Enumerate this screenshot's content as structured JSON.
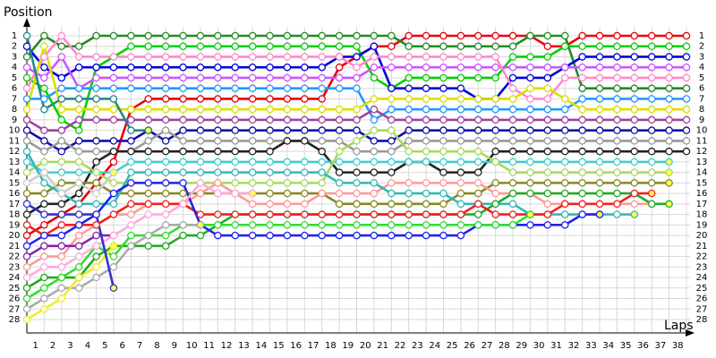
{
  "chart_data": {
    "type": "line",
    "y_label": "Position",
    "x_label": "Laps",
    "x": [
      0,
      1,
      2,
      3,
      4,
      5,
      6,
      7,
      8,
      9,
      10,
      11,
      12,
      13,
      14,
      15,
      16,
      17,
      18,
      19,
      20,
      21,
      22,
      23,
      24,
      25,
      26,
      27,
      28,
      29,
      30,
      31,
      32,
      33,
      34,
      35,
      36,
      37,
      38
    ],
    "xlim": [
      0,
      38
    ],
    "xticks": [
      1,
      2,
      3,
      4,
      5,
      6,
      7,
      8,
      9,
      10,
      11,
      12,
      13,
      14,
      15,
      16,
      17,
      18,
      19,
      20,
      21,
      22,
      23,
      24,
      25,
      26,
      27,
      28,
      29,
      30,
      31,
      32,
      33,
      34,
      35,
      36,
      37,
      38
    ],
    "ylim": [
      1,
      28
    ],
    "y_inverted": true,
    "yticks": [
      1,
      2,
      3,
      4,
      5,
      6,
      7,
      8,
      9,
      10,
      11,
      12,
      13,
      14,
      15,
      16,
      17,
      18,
      19,
      20,
      21,
      22,
      23,
      24,
      25,
      26,
      27,
      28
    ],
    "grid": true,
    "series": [
      {
        "color": "#e8000b",
        "values": [
          20,
          19,
          18,
          17,
          15,
          13,
          8,
          7,
          7,
          7,
          7,
          7,
          7,
          7,
          7,
          7,
          7,
          7,
          4,
          3,
          2,
          2,
          1,
          1,
          1,
          1,
          1,
          1,
          1,
          1,
          2,
          2,
          1,
          1,
          1,
          1,
          1,
          1,
          1
        ]
      },
      {
        "color": "#228b22",
        "values": [
          3,
          1,
          2,
          2,
          1,
          1,
          1,
          1,
          1,
          1,
          1,
          1,
          1,
          1,
          1,
          1,
          1,
          1,
          1,
          1,
          1,
          1,
          2,
          2,
          2,
          2,
          2,
          2,
          2,
          1,
          1,
          1,
          6,
          6,
          6,
          6,
          6,
          6,
          6
        ]
      },
      {
        "color": "#00d000",
        "values": [
          5,
          6,
          9,
          10,
          4,
          3,
          2,
          2,
          2,
          2,
          2,
          2,
          2,
          2,
          2,
          2,
          2,
          2,
          2,
          2,
          5,
          6,
          5,
          5,
          5,
          5,
          5,
          5,
          3,
          3,
          3,
          2,
          2,
          2,
          2,
          2,
          2,
          2,
          2
        ]
      },
      {
        "color": "#0000dd",
        "values": [
          2,
          4,
          5,
          4,
          4,
          4,
          4,
          4,
          4,
          4,
          4,
          4,
          4,
          4,
          4,
          4,
          4,
          4,
          3,
          3,
          2,
          6,
          6,
          6,
          6,
          6,
          7,
          7,
          5,
          5,
          5,
          4,
          3,
          3,
          3,
          3,
          3,
          3,
          3
        ]
      },
      {
        "color": "#cc55ff",
        "values": [
          4,
          5,
          3,
          6,
          5,
          5,
          5,
          5,
          5,
          5,
          5,
          5,
          5,
          5,
          5,
          5,
          5,
          5,
          5,
          5,
          4,
          4,
          4,
          4,
          4,
          4,
          4,
          4,
          4,
          4,
          4,
          4,
          4,
          4,
          4,
          4,
          4,
          4,
          4
        ]
      },
      {
        "color": "#ff88cc",
        "values": [
          6,
          3,
          1,
          3,
          3,
          3,
          3,
          3,
          3,
          3,
          3,
          3,
          3,
          3,
          3,
          3,
          3,
          3,
          3,
          4,
          3,
          3,
          3,
          3,
          3,
          3,
          3,
          3,
          6,
          7,
          7,
          5,
          5,
          5,
          5,
          5,
          5,
          5,
          5
        ]
      },
      {
        "color": "#2299ff",
        "values": [
          7,
          7,
          6,
          6,
          6,
          6,
          6,
          6,
          6,
          6,
          6,
          6,
          6,
          6,
          6,
          6,
          6,
          6,
          6,
          6,
          9,
          8,
          8,
          8,
          8,
          8,
          8,
          8,
          8,
          8,
          8,
          8,
          7,
          7,
          7,
          7,
          7,
          7,
          7
        ]
      },
      {
        "color": "#dddd00",
        "values": [
          8,
          2,
          8,
          8,
          8,
          8,
          8,
          8,
          8,
          8,
          8,
          8,
          8,
          8,
          8,
          8,
          8,
          8,
          8,
          8,
          7,
          7,
          7,
          7,
          7,
          7,
          7,
          7,
          7,
          6,
          6,
          7,
          8,
          8,
          8,
          8,
          8,
          8,
          8
        ]
      },
      {
        "color": "#a040a0",
        "values": [
          9,
          10,
          10,
          9,
          9,
          9,
          9,
          9,
          9,
          9,
          9,
          9,
          9,
          9,
          9,
          9,
          9,
          9,
          9,
          9,
          8,
          9,
          9,
          9,
          9,
          9,
          9,
          9,
          9,
          9,
          9,
          9,
          9,
          9,
          9,
          9,
          9,
          9,
          9
        ]
      },
      {
        "color": "#1111aa",
        "values": [
          10,
          11,
          12,
          11,
          11,
          11,
          11,
          10,
          11,
          10,
          10,
          10,
          10,
          10,
          10,
          10,
          10,
          10,
          10,
          10,
          11,
          11,
          10,
          10,
          10,
          10,
          10,
          10,
          10,
          10,
          10,
          10,
          10,
          10,
          10,
          10,
          10,
          10,
          10
        ]
      },
      {
        "color": "#999999",
        "values": [
          11,
          12,
          11,
          12,
          12,
          12,
          12,
          11,
          10,
          11,
          11,
          11,
          11,
          11,
          11,
          11,
          11,
          11,
          11,
          12,
          12,
          12,
          11,
          11,
          11,
          11,
          11,
          11,
          11,
          11,
          11,
          11,
          11,
          11,
          11,
          11,
          11,
          11,
          11
        ]
      },
      {
        "color": "#222222",
        "values": [
          18,
          17,
          17,
          16,
          13,
          12,
          12,
          12,
          12,
          12,
          12,
          12,
          12,
          12,
          12,
          11,
          11,
          12,
          14,
          14,
          14,
          14,
          13,
          13,
          14,
          14,
          14,
          12,
          12,
          12,
          12,
          12,
          12,
          12,
          12,
          12,
          12,
          12,
          12
        ]
      },
      {
        "color": "#44cccc",
        "values": [
          13,
          14,
          14,
          14,
          14,
          14,
          13,
          13,
          13,
          13,
          13,
          13,
          13,
          13,
          13,
          13,
          13,
          13,
          13,
          13,
          13,
          13,
          13,
          13,
          13,
          13,
          13,
          13,
          13,
          13,
          13,
          13,
          13,
          13,
          13,
          13,
          13,
          13,
          null
        ]
      },
      {
        "color": "#888822",
        "values": [
          16,
          16,
          15,
          15,
          15,
          16,
          16,
          16,
          16,
          16,
          16,
          16,
          16,
          16,
          16,
          16,
          16,
          16,
          17,
          17,
          17,
          17,
          17,
          17,
          17,
          16,
          16,
          15,
          15,
          15,
          15,
          15,
          15,
          15,
          15,
          15,
          15,
          15,
          null
        ]
      },
      {
        "color": "#a8d860",
        "values": [
          14,
          13,
          13,
          13,
          14,
          15,
          15,
          15,
          15,
          15,
          15,
          15,
          15,
          15,
          15,
          15,
          15,
          15,
          12,
          11,
          10,
          10,
          12,
          12,
          12,
          12,
          12,
          13,
          14,
          14,
          14,
          14,
          14,
          14,
          14,
          14,
          14,
          14,
          null
        ]
      },
      {
        "color": "#ff9999",
        "values": [
          23,
          22,
          22,
          20,
          19,
          18,
          18,
          17,
          17,
          17,
          16,
          15,
          16,
          17,
          17,
          17,
          17,
          16,
          16,
          16,
          16,
          15,
          15,
          15,
          15,
          15,
          15,
          16,
          16,
          16,
          17,
          17,
          17,
          17,
          17,
          17,
          17,
          null,
          null
        ]
      },
      {
        "color": "#33b8b8",
        "values": [
          12,
          15,
          16,
          17,
          17,
          17,
          14,
          14,
          14,
          14,
          14,
          14,
          14,
          14,
          14,
          14,
          14,
          14,
          15,
          15,
          15,
          16,
          16,
          16,
          16,
          17,
          17,
          17,
          17,
          18,
          18,
          18,
          18,
          18,
          18,
          18,
          null,
          null,
          null
        ]
      },
      {
        "color": "#22aa22",
        "values": [
          25,
          24,
          24,
          24,
          22,
          21,
          21,
          21,
          21,
          20,
          20,
          19,
          18,
          18,
          18,
          18,
          18,
          18,
          18,
          18,
          18,
          18,
          18,
          18,
          18,
          18,
          18,
          17,
          16,
          16,
          16,
          16,
          16,
          16,
          16,
          16,
          17,
          17,
          null
        ]
      },
      {
        "color": "#ee2222",
        "values": [
          19,
          20,
          19,
          19,
          19,
          18,
          17,
          17,
          17,
          17,
          18,
          18,
          18,
          18,
          18,
          18,
          18,
          18,
          18,
          18,
          18,
          18,
          18,
          18,
          18,
          18,
          17,
          18,
          18,
          18,
          18,
          17,
          17,
          17,
          17,
          16,
          16,
          null,
          null
        ]
      },
      {
        "color": "#2222ee",
        "values": [
          21,
          20,
          20,
          19,
          18,
          16,
          15,
          15,
          15,
          15,
          19,
          20,
          20,
          20,
          20,
          20,
          20,
          20,
          20,
          20,
          20,
          20,
          20,
          20,
          20,
          20,
          19,
          19,
          19,
          19,
          19,
          19,
          18,
          18,
          null,
          null,
          null,
          null,
          null
        ]
      },
      {
        "color": "#33dd33",
        "values": [
          26,
          25,
          24,
          23,
          21,
          22,
          20,
          20,
          20,
          19,
          19,
          19,
          19,
          19,
          19,
          19,
          19,
          19,
          19,
          19,
          19,
          19,
          19,
          19,
          19,
          19,
          19,
          19,
          19,
          18,
          null,
          null,
          null,
          null,
          null,
          null,
          null,
          null,
          null
        ]
      },
      {
        "color": "#aaaaaa",
        "values": [
          27,
          26,
          25,
          25,
          24,
          23,
          21,
          20,
          19,
          19,
          19,
          null,
          null,
          null,
          null,
          null,
          null,
          null,
          null,
          null,
          null,
          null,
          null,
          null,
          null,
          null,
          null,
          null,
          null,
          null,
          null,
          null,
          null,
          null,
          null,
          null,
          null,
          null,
          null
        ]
      },
      {
        "color": "#8822aa",
        "values": [
          22,
          21,
          21,
          21,
          20,
          20,
          null,
          null,
          null,
          null,
          null,
          null,
          null,
          null,
          null,
          null,
          null,
          null,
          null,
          null,
          null,
          null,
          null,
          null,
          null,
          null,
          null,
          null,
          null,
          null,
          null,
          null,
          null,
          null,
          null,
          null,
          null,
          null,
          null
        ]
      },
      {
        "color": "#ffaadd",
        "values": [
          24,
          23,
          23,
          22,
          21,
          20,
          19,
          18,
          18,
          17,
          15,
          16,
          16,
          16,
          null,
          null,
          null,
          null,
          null,
          null,
          null,
          null,
          null,
          null,
          null,
          null,
          null,
          null,
          null,
          null,
          null,
          null,
          null,
          null,
          null,
          null,
          null,
          null,
          null
        ]
      },
      {
        "color": "#eeee22",
        "values": [
          28,
          27,
          26,
          24,
          23,
          21,
          null,
          null,
          null,
          null,
          null,
          null,
          null,
          null,
          null,
          null,
          null,
          null,
          null,
          null,
          null,
          null,
          null,
          null,
          null,
          null,
          null,
          null,
          null,
          null,
          null,
          null,
          null,
          null,
          null,
          null,
          null,
          null,
          null
        ]
      },
      {
        "color": "#3333cc",
        "values": [
          17,
          18,
          18,
          18,
          18,
          25,
          null,
          null,
          null,
          null,
          null,
          null,
          null,
          null,
          null,
          null,
          null,
          null,
          null,
          null,
          null,
          null,
          null,
          null,
          null,
          null,
          null,
          null,
          null,
          null,
          null,
          null,
          null,
          null,
          null,
          null,
          null,
          null,
          null
        ]
      },
      {
        "color": "#cccccc",
        "values": [
          15,
          14,
          16,
          15,
          16,
          14,
          null,
          null,
          null,
          null,
          null,
          null,
          null,
          null,
          null,
          null,
          null,
          null,
          null,
          null,
          null,
          null,
          null,
          null,
          null,
          null,
          null,
          null,
          null,
          null,
          null,
          null,
          null,
          null,
          null,
          null,
          null,
          null,
          null
        ]
      },
      {
        "color": "#228888",
        "values": [
          1,
          8,
          7,
          7,
          7,
          7,
          10,
          10,
          null,
          null,
          null,
          null,
          null,
          null,
          null,
          null,
          null,
          null,
          null,
          null,
          null,
          null,
          null,
          null,
          null,
          null,
          null,
          null,
          null,
          null,
          null,
          null,
          null,
          null,
          null,
          null,
          null,
          null,
          null
        ]
      }
    ]
  }
}
